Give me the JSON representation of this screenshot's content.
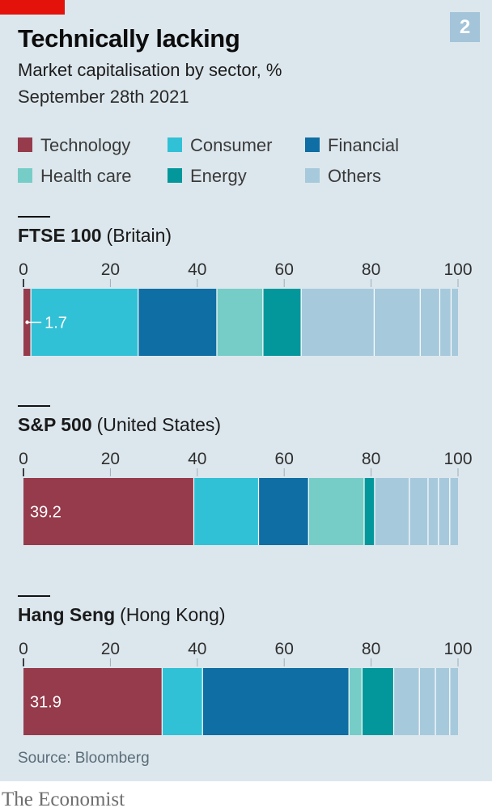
{
  "colors": {
    "background": "#dce7ed",
    "brand_red": "#e3120b",
    "figure_badge": "#a3c4d9"
  },
  "figure_number": "2",
  "chart_data": {
    "type": "bar",
    "orientation": "horizontal",
    "stacked": true,
    "title": "Technically lacking",
    "subtitle": "Market capitalisation by sector, %",
    "date": "September 28th 2021",
    "legend_position": "top",
    "grid": false,
    "xlim": [
      0,
      100
    ],
    "xticks": [
      0,
      20,
      40,
      60,
      80,
      100
    ],
    "categories": [
      "FTSE 100",
      "S&P 500",
      "Hang Seng"
    ],
    "category_notes": [
      "(Britain)",
      "(United States)",
      "(Hong Kong)"
    ],
    "series": [
      {
        "name": "Technology",
        "color": "#963b4c",
        "show_values": true,
        "values": [
          1.7,
          39.2,
          31.9
        ]
      },
      {
        "name": "Consumer",
        "color": "#31c1d6",
        "values": [
          24.7,
          14.9,
          9.3
        ]
      },
      {
        "name": "Financial",
        "color": "#0f6ea3",
        "values": [
          18.1,
          11.5,
          33.7
        ]
      },
      {
        "name": "Health care",
        "color": "#76cdc7",
        "values": [
          10.6,
          12.8,
          3.0
        ]
      },
      {
        "name": "Energy",
        "color": "#03979c",
        "values": [
          8.8,
          2.4,
          7.3
        ]
      },
      {
        "name": "Others",
        "color": "#a7c9dc",
        "values": [
          [
            16.8,
            10.6,
            4.5,
            2.6,
            1.6
          ],
          [
            8.0,
            4.3,
            2.4,
            2.6,
            1.9
          ],
          [
            5.9,
            3.7,
            3.3,
            1.9
          ]
        ]
      }
    ]
  },
  "source": "Source: Bloomberg",
  "brand": "The Economist"
}
